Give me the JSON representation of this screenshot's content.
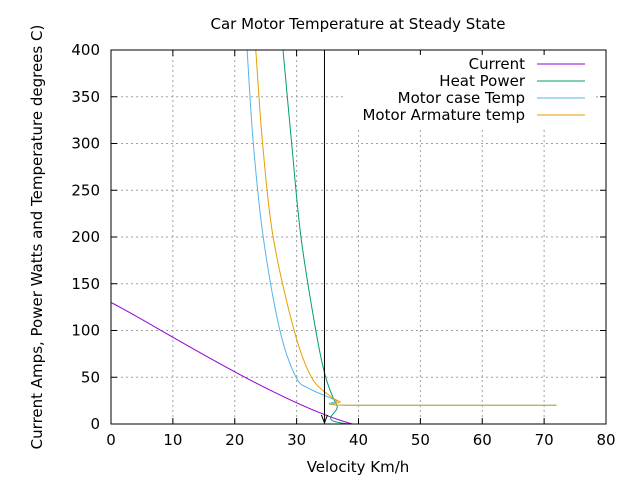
{
  "chart_data": {
    "type": "line",
    "title": "Car Motor Temperature at Steady State",
    "xlabel": "Velocity Km/h",
    "ylabel": "Current Amps, Power Watts and Temperature degrees C)",
    "xlim": [
      0,
      80
    ],
    "ylim": [
      0,
      400
    ],
    "xticks": [
      0,
      10,
      20,
      30,
      40,
      50,
      60,
      70,
      80
    ],
    "yticks": [
      0,
      50,
      100,
      150,
      200,
      250,
      300,
      350,
      400
    ],
    "grid": true,
    "legend_position": "top-right",
    "annotation_arrow_x": 34.5,
    "series": [
      {
        "name": "Current",
        "color": "#9400d3",
        "x": [
          0,
          39,
          72
        ],
        "y": [
          130,
          0,
          0
        ]
      },
      {
        "name": "Heat Power",
        "color": "#009e73",
        "x": [
          27.8,
          29.2,
          30.7,
          33.1,
          34.7,
          36.5,
          38.6,
          72
        ],
        "y": [
          400,
          300,
          200,
          100,
          50,
          20,
          0,
          0
        ]
      },
      {
        "name": "Motor case Temp",
        "color": "#56b4e9",
        "x": [
          22.0,
          23.0,
          24.6,
          27.3,
          29.9,
          32.0,
          34.7,
          36.5,
          38.3,
          72
        ],
        "y": [
          400,
          300,
          200,
          100,
          50,
          38,
          30,
          25,
          20,
          20
        ]
      },
      {
        "name": "Motor Armature temp",
        "color": "#e69f00",
        "x": [
          23.4,
          24.5,
          26.2,
          29.6,
          32.4,
          35.4,
          37.0,
          38.5,
          72
        ],
        "y": [
          400,
          300,
          200,
          100,
          50,
          30,
          24,
          20,
          20
        ]
      }
    ]
  }
}
